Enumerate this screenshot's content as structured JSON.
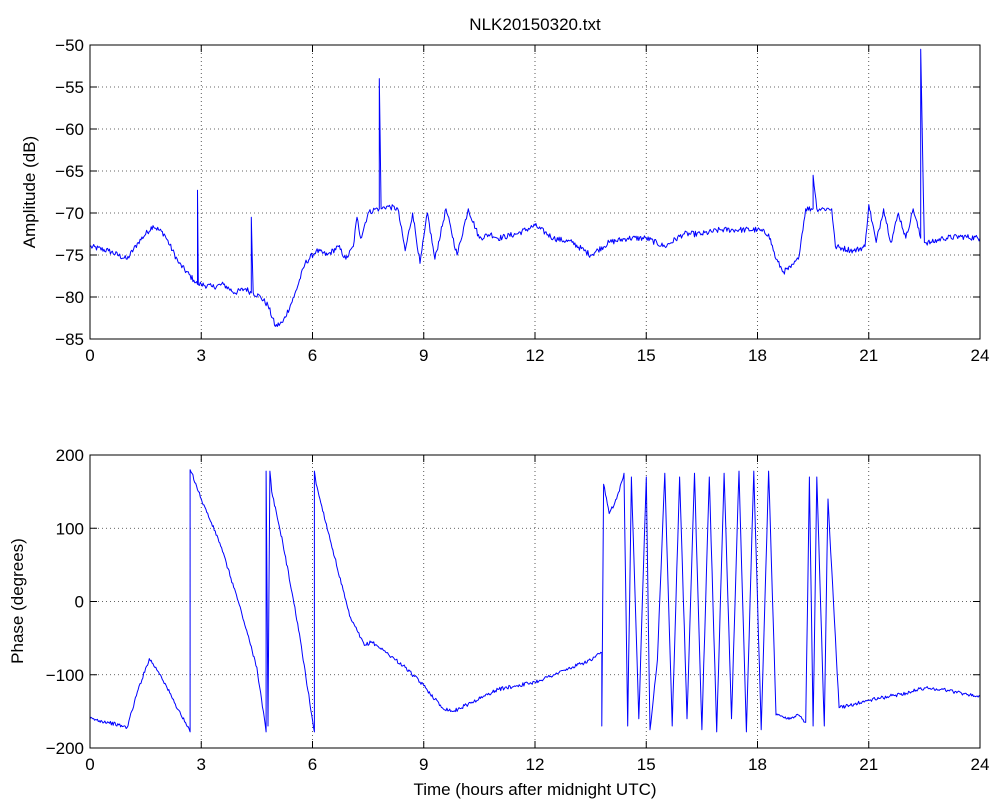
{
  "chart_data": [
    {
      "type": "line",
      "title": "NLK20150320.txt",
      "xlabel": "",
      "ylabel": "Amplitude (dB)",
      "xlim": [
        0,
        24
      ],
      "ylim": [
        -85,
        -50
      ],
      "xticks": [
        "0",
        "3",
        "6",
        "9",
        "12",
        "15",
        "18",
        "21",
        "24"
      ],
      "yticks": [
        "-85",
        "-80",
        "-75",
        "-70",
        "-65",
        "-60",
        "-55",
        "-50"
      ],
      "grid": true,
      "color": "#0000ff",
      "series": [
        {
          "x": [
            0,
            0.5,
            1.0,
            1.3,
            1.7,
            2.0,
            2.4,
            2.8,
            2.9,
            2.9,
            2.92,
            3.0,
            3.3,
            3.6,
            3.9,
            4.2,
            4.35,
            4.35,
            4.4,
            4.6,
            4.8,
            5.0,
            5.2,
            5.5,
            5.8,
            6.1,
            6.4,
            6.7,
            6.9,
            7.1,
            7.2,
            7.3,
            7.5,
            7.7,
            7.8,
            7.8,
            7.85,
            8.0,
            8.3,
            8.5,
            8.7,
            8.9,
            9.1,
            9.3,
            9.6,
            9.9,
            10.2,
            10.5,
            10.8,
            11.0,
            11.5,
            12.0,
            12.5,
            13.0,
            13.5,
            14.0,
            14.5,
            15.0,
            15.5,
            16.0,
            16.5,
            17.0,
            17.5,
            18.0,
            18.3,
            18.5,
            18.7,
            18.9,
            19.1,
            19.3,
            19.5,
            19.5,
            19.6,
            19.8,
            20.0,
            20.1,
            20.3,
            20.6,
            20.9,
            21.0,
            21.2,
            21.4,
            21.6,
            21.8,
            22.0,
            22.2,
            22.4,
            22.4,
            22.5,
            22.7,
            23.0,
            23.5,
            24.0
          ],
          "values": [
            -74,
            -74.5,
            -75.5,
            -73.5,
            -71.5,
            -72.5,
            -76,
            -78,
            -78.5,
            -67.3,
            -78.5,
            -78.5,
            -78.8,
            -78.5,
            -79.5,
            -79,
            -79.5,
            -70.5,
            -79.5,
            -80,
            -81,
            -83.5,
            -83,
            -80,
            -76,
            -74.5,
            -75,
            -74,
            -75.5,
            -74,
            -70.5,
            -73,
            -70,
            -69.5,
            -69.5,
            -54,
            -69.5,
            -69.2,
            -69.5,
            -74.5,
            -70,
            -76,
            -70,
            -75.5,
            -69.5,
            -75,
            -69.5,
            -73,
            -72.5,
            -73,
            -72.5,
            -71.5,
            -73,
            -73.5,
            -75,
            -73.5,
            -73,
            -73,
            -74,
            -72.5,
            -72.5,
            -72,
            -72,
            -72,
            -72.5,
            -75.5,
            -77,
            -76.5,
            -75.5,
            -69.5,
            -69.5,
            -65.5,
            -69.5,
            -69.5,
            -69.5,
            -74,
            -74.2,
            -74.5,
            -74,
            -69,
            -73.5,
            -69.5,
            -73.5,
            -70,
            -73,
            -69.5,
            -73,
            -50.5,
            -73.5,
            -73.5,
            -73,
            -72.8,
            -73
          ]
        }
      ]
    },
    {
      "type": "line",
      "title": "",
      "xlabel": "Time (hours after midnight UTC)",
      "ylabel": "Phase (degrees)",
      "xlim": [
        0,
        24
      ],
      "ylim": [
        -200,
        200
      ],
      "xticks": [
        "0",
        "3",
        "6",
        "9",
        "12",
        "15",
        "18",
        "21",
        "24"
      ],
      "yticks": [
        "-200",
        "-100",
        "0",
        "100",
        "200"
      ],
      "grid": true,
      "color": "#0000ff",
      "series": [
        {
          "x": [
            0,
            0.5,
            1.0,
            1.3,
            1.6,
            1.9,
            2.3,
            2.7,
            2.7,
            2.75,
            3.0,
            3.5,
            4.0,
            4.5,
            4.75,
            4.75,
            4.8,
            4.85,
            4.9,
            5.2,
            5.6,
            6.05,
            6.05,
            6.1,
            6.5,
            7.0,
            7.4,
            7.6,
            8.0,
            8.5,
            9.0,
            9.5,
            9.8,
            10.2,
            10.6,
            11.0,
            11.5,
            12.0,
            12.5,
            13.0,
            13.5,
            13.8,
            13.8,
            13.85,
            14.0,
            14.2,
            14.4,
            14.5,
            14.6,
            14.8,
            15.0,
            15.1,
            15.3,
            15.5,
            15.7,
            15.9,
            16.1,
            16.3,
            16.5,
            16.7,
            16.9,
            17.1,
            17.3,
            17.5,
            17.7,
            17.9,
            18.1,
            18.3,
            18.5,
            18.8,
            19.1,
            19.3,
            19.4,
            19.5,
            19.6,
            19.8,
            19.9,
            20.2,
            20.6,
            21.0,
            21.5,
            22.0,
            22.5,
            23.0,
            23.5,
            24.0
          ],
          "values": [
            -160,
            -165,
            -172,
            -120,
            -78,
            -100,
            -140,
            -178,
            180,
            175,
            140,
            80,
            0,
            -90,
            -178,
            178,
            -170,
            178,
            150,
            80,
            -30,
            -178,
            178,
            160,
            80,
            -20,
            -60,
            -55,
            -70,
            -90,
            -115,
            -145,
            -150,
            -140,
            -130,
            -120,
            -115,
            -110,
            -100,
            -90,
            -80,
            -70,
            -170,
            160,
            120,
            140,
            175,
            -170,
            170,
            -160,
            170,
            -175,
            -80,
            175,
            -170,
            170,
            -160,
            175,
            -175,
            170,
            -178,
            175,
            -160,
            178,
            -178,
            178,
            -175,
            178,
            -155,
            -160,
            -155,
            -165,
            170,
            -170,
            170,
            -170,
            140,
            -145,
            -140,
            -135,
            -130,
            -125,
            -118,
            -120,
            -125,
            -130
          ]
        }
      ]
    }
  ]
}
